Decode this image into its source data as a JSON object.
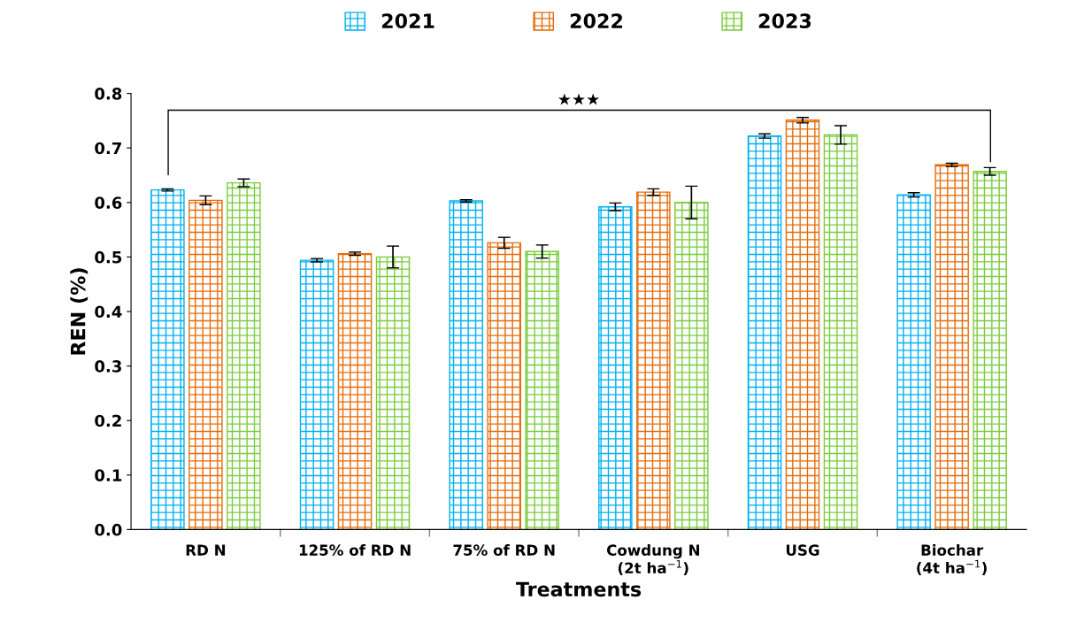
{
  "chart_data": {
    "type": "bar",
    "xlabel": "Treatments",
    "ylabel": "REN (%)",
    "categories": [
      "RD N",
      "125% of RD N",
      "75% of RD N",
      "Cowdung N\n(2t ha$^{−1}$)",
      "USG",
      "Biochar\n(4t ha$^{−1}$)"
    ],
    "series": [
      {
        "name": "2021",
        "color": "#00b0f0",
        "values": [
          0.623,
          0.494,
          0.603,
          0.592,
          0.722,
          0.614
        ],
        "errors": [
          0.002,
          0.003,
          0.002,
          0.007,
          0.004,
          0.004
        ]
      },
      {
        "name": "2022",
        "color": "#e46c0a",
        "values": [
          0.604,
          0.506,
          0.526,
          0.619,
          0.751,
          0.669
        ],
        "errors": [
          0.008,
          0.003,
          0.01,
          0.006,
          0.005,
          0.003
        ]
      },
      {
        "name": "2023",
        "color": "#7acc3c",
        "values": [
          0.636,
          0.5,
          0.51,
          0.6,
          0.724,
          0.657
        ],
        "errors": [
          0.007,
          0.02,
          0.012,
          0.03,
          0.017,
          0.007
        ]
      }
    ],
    "ylim": [
      0,
      0.8
    ],
    "yticks": [
      {
        "value": 0,
        "label": "0.0"
      },
      {
        "value": 0.1,
        "label": "0.1"
      },
      {
        "value": 0.2,
        "label": "0.2"
      },
      {
        "value": 0.3,
        "label": "0.3"
      },
      {
        "value": 0.4,
        "label": "0.4"
      },
      {
        "value": 0.5,
        "label": "0.5"
      },
      {
        "value": 0.6,
        "label": "0.6"
      },
      {
        "value": 0.7,
        "label": "0.7"
      },
      {
        "value": 0.8,
        "label": "0.8"
      }
    ],
    "annotations": [
      "★★★"
    ],
    "grid": false,
    "legend": "top"
  }
}
